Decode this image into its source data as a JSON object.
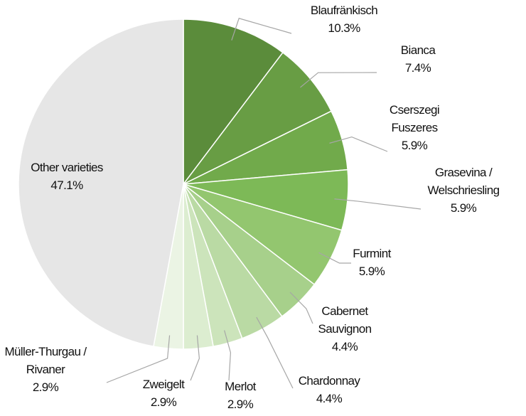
{
  "chart_data": {
    "type": "pie",
    "categories": [
      "Blaufränkisch",
      "Bianca",
      "Cserszegi Fuszeres",
      "Grasevina / Welschriesling",
      "Furmint",
      "Cabernet Sauvignon",
      "Chardonnay",
      "Merlot",
      "Zweigelt",
      "Müller-Thurgau / Rivaner",
      "Other varieties"
    ],
    "values": [
      10.3,
      7.4,
      5.9,
      5.9,
      5.9,
      4.4,
      4.4,
      2.9,
      2.9,
      2.9,
      47.1
    ],
    "value_labels": [
      "10.3%",
      "7.4%",
      "5.9%",
      "5.9%",
      "5.9%",
      "4.4%",
      "4.4%",
      "2.9%",
      "2.9%",
      "2.9%",
      "47.1%"
    ],
    "colors": [
      "#5b8c3b",
      "#689d44",
      "#71aa4b",
      "#7db957",
      "#93c66f",
      "#a7d08b",
      "#badaa4",
      "#cce4bb",
      "#dcedd0",
      "#ebf4e4",
      "#e6e6e6"
    ]
  }
}
